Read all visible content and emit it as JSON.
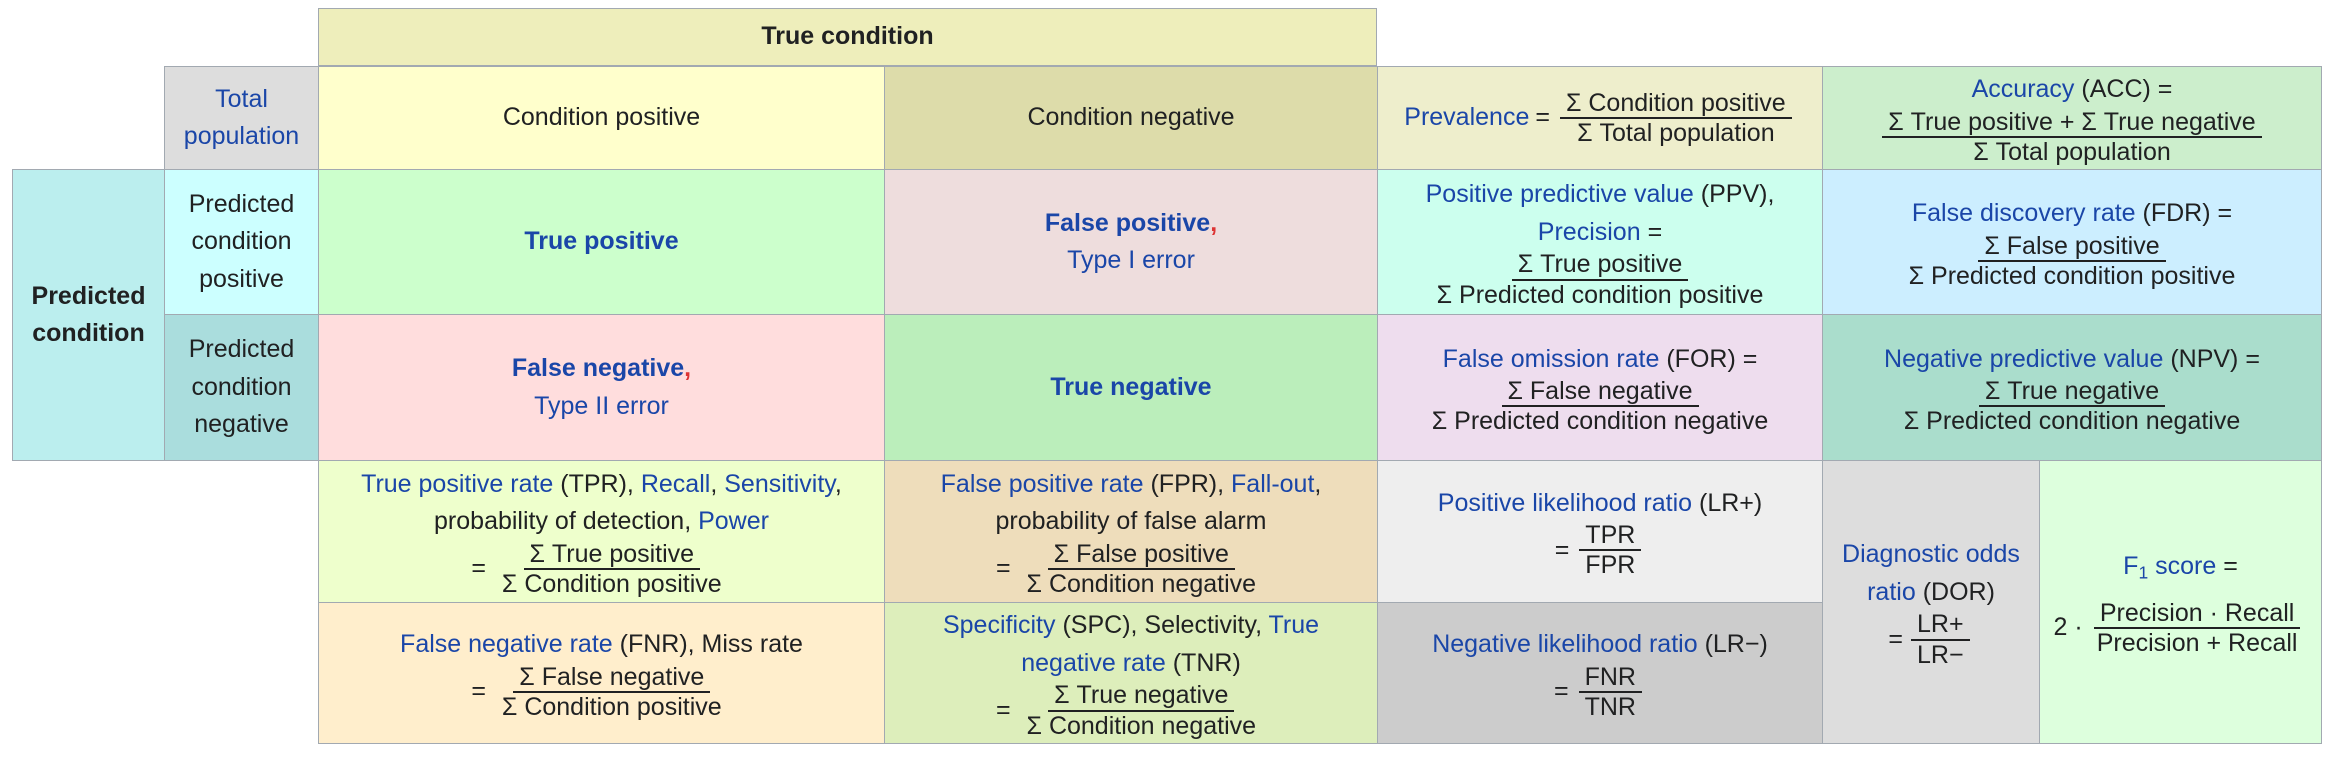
{
  "true_condition": "True condition",
  "total_population": "Total population",
  "condition_positive": "Condition positive",
  "condition_negative": "Condition negative",
  "predicted_condition": "Predicted condition",
  "predicted_condition_positive": "Predicted condition positive",
  "predicted_condition_negative": "Predicted condition negative",
  "true_positive": "True positive",
  "false_positive": "False positive",
  "type_i_error": "Type I error",
  "false_negative": "False negative",
  "type_ii_error": "Type II error",
  "true_negative": "True negative",
  "comma": ",",
  "prevalence": {
    "name": "Prevalence",
    "eq": "=",
    "num": "Σ Condition positive",
    "den": "Σ Total population"
  },
  "accuracy": {
    "name": "Accuracy",
    "abbr": "(ACC) =",
    "num": "Σ True positive + Σ True negative",
    "den": "Σ Total population"
  },
  "ppv": {
    "name": "Positive predictive value",
    "abbr": "(PPV),",
    "alt": "Precision",
    "eq": "=",
    "num": "Σ True positive",
    "den": "Σ Predicted condition positive"
  },
  "fdr": {
    "name": "False discovery rate",
    "abbr": "(FDR) =",
    "num": "Σ False positive",
    "den": "Σ Predicted condition positive"
  },
  "for": {
    "name": "False omission rate",
    "abbr": "(FOR) =",
    "num": "Σ False negative",
    "den": "Σ Predicted condition negative"
  },
  "npv": {
    "name": "Negative predictive value",
    "abbr": "(NPV) =",
    "num": "Σ True negative",
    "den": "Σ Predicted condition negative"
  },
  "tpr": {
    "name": "True positive rate",
    "abbr": "(TPR),",
    "recall": "Recall",
    "sensitivity": "Sensitivity",
    "prob": "probability of detection,",
    "power": "Power",
    "eq": "=",
    "num": "Σ True positive",
    "den": "Σ Condition positive"
  },
  "fpr": {
    "name": "False positive rate",
    "abbr": "(FPR),",
    "fallout": "Fall-out",
    "prob": "probability of false alarm",
    "eq": "=",
    "num": "Σ False positive",
    "den": "Σ Condition negative"
  },
  "fnr": {
    "name": "False negative rate",
    "abbr": "(FNR), Miss rate",
    "eq": "=",
    "num": "Σ False negative",
    "den": "Σ Condition positive"
  },
  "spc": {
    "name": "Specificity",
    "abbr": "(SPC), Selectivity,",
    "tnr_a": "True",
    "tnr_b": "negative rate",
    "tnr_abbr": "(TNR)",
    "eq": "=",
    "num": "Σ True negative",
    "den": "Σ Condition negative"
  },
  "lr_pos": {
    "name": "Positive likelihood ratio",
    "abbr": "(LR+)",
    "eq": "=",
    "num": "TPR",
    "den": "FPR"
  },
  "lr_neg": {
    "name": "Negative likelihood ratio",
    "abbr": "(LR−)",
    "eq": "=",
    "num": "FNR",
    "den": "TNR"
  },
  "dor": {
    "name_a": "Diagnostic odds",
    "name_b": "ratio",
    "abbr": "(DOR)",
    "eq": "=",
    "num": "LR+",
    "den": "LR−"
  },
  "f1": {
    "name": "F",
    "sub": "1",
    "name_b": " score",
    "eq": "=",
    "prefix": "2 ·",
    "num": "Precision · Recall",
    "den": "Precision + Recall"
  },
  "colors": {
    "link": "#1a46a8",
    "true_condition_bg": "#eeeebb",
    "total_population_bg": "#dddddd",
    "condition_positive_bg": "#ffffcc",
    "condition_negative_bg": "#dddcaa",
    "predicted_condition_bg": "#bbeeee",
    "predicted_positive_bg": "#ccffff",
    "predicted_negative_bg": "#aadddd",
    "true_positive_bg": "#ccffcc",
    "false_positive_bg": "#eedddd",
    "false_negative_bg": "#ffdddd",
    "true_negative_bg": "#bbeebb"
  }
}
